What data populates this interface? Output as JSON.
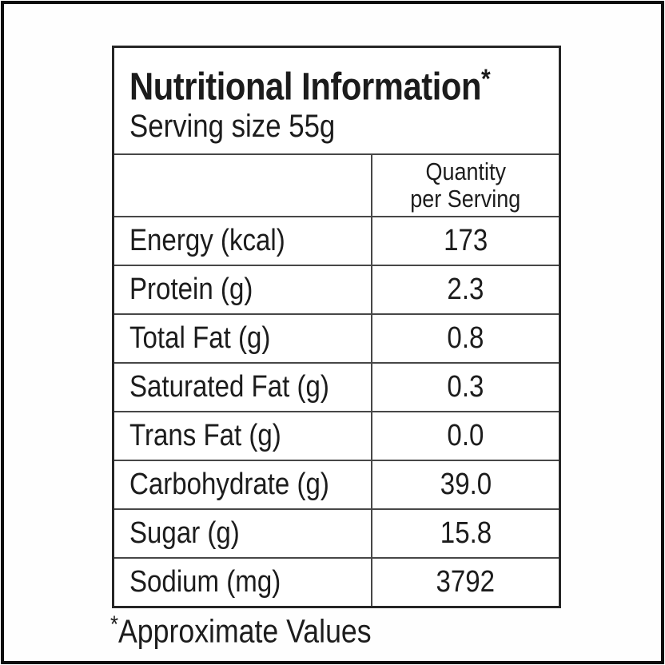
{
  "label": {
    "title": "Nutritional Information",
    "title_note_marker": "*",
    "serving_size": "Serving size 55g",
    "column_header": {
      "line1": "Quantity",
      "line2": "per Serving"
    },
    "rows": [
      {
        "label": "Energy (kcal)",
        "value": "173"
      },
      {
        "label": "Protein (g)",
        "value": "2.3"
      },
      {
        "label": "Total Fat (g)",
        "value": "0.8"
      },
      {
        "label": "Saturated Fat (g)",
        "value": "0.3"
      },
      {
        "label": "Trans Fat (g)",
        "value": "0.0"
      },
      {
        "label": "Carbohydrate (g)",
        "value": "39.0"
      },
      {
        "label": "Sugar (g)",
        "value": "15.8"
      },
      {
        "label": "Sodium (mg)",
        "value": "3792"
      }
    ],
    "footnote": {
      "marker": "*",
      "text": "Approximate Values"
    }
  },
  "colors": {
    "text": "#1c1c1c",
    "table_border": "#262626",
    "inner_rule": "#474747",
    "page_frame": "#0d0d0d",
    "background": "#ffffff"
  }
}
